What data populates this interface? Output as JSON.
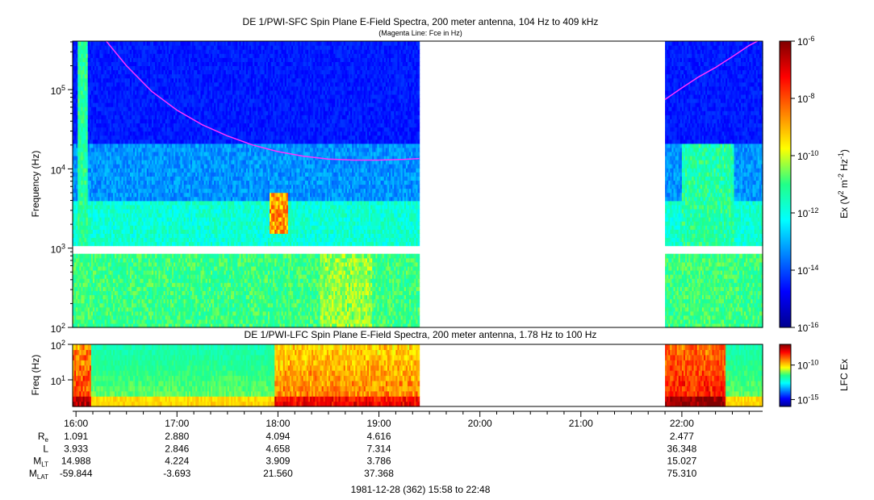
{
  "chart_data": [
    {
      "type": "heatmap",
      "title": "DE 1/PWI-SFC  Spin Plane E-Field Spectra, 200 meter antenna, 104 Hz to 409 kHz",
      "subtitle": "(Magenta Line: Fce in Hz)",
      "ylabel": "Frequency (Hz)",
      "yscale": "log",
      "ylim": [
        100,
        409000
      ],
      "y_ticks": [
        {
          "value": 100,
          "base": "10",
          "exp": "2"
        },
        {
          "value": 1000,
          "base": "10",
          "exp": "3"
        },
        {
          "value": 10000,
          "base": "10",
          "exp": "4"
        },
        {
          "value": 100000,
          "base": "10",
          "exp": "5"
        }
      ],
      "colorbar": {
        "label_parts": [
          "Ex (V",
          "2",
          " m",
          "-2",
          " Hz",
          "-1",
          ")"
        ],
        "scale": "log",
        "range": [
          1e-16,
          1e-06
        ],
        "ticks": [
          {
            "value": 1e-16,
            "base": "10",
            "exp": "-16"
          },
          {
            "value": 1e-14,
            "base": "10",
            "exp": "-14"
          },
          {
            "value": 1e-12,
            "base": "10",
            "exp": "-12"
          },
          {
            "value": 1e-10,
            "base": "10",
            "exp": "-10"
          },
          {
            "value": 1e-08,
            "base": "10",
            "exp": "-8"
          },
          {
            "value": 1e-06,
            "base": "10",
            "exp": "-6"
          }
        ]
      },
      "data_segments_ut": [
        [
          "15:58",
          "19:24"
        ],
        [
          "21:50",
          "22:48"
        ]
      ],
      "series": [
        {
          "name": "Fce",
          "color": "#ff33ff",
          "x": [
            "16:18",
            "16:30",
            "16:45",
            "17:00",
            "17:15",
            "17:30",
            "17:45",
            "18:00",
            "18:15",
            "18:30",
            "18:45",
            "19:00",
            "19:15",
            "19:24",
            "21:50",
            "22:00",
            "22:10",
            "22:20",
            "22:30",
            "22:40",
            "22:45"
          ],
          "y": [
            409000,
            200000,
            95000,
            55000,
            36000,
            26000,
            20000,
            16500,
            14500,
            13300,
            12900,
            12900,
            13200,
            13500,
            75000,
            105000,
            145000,
            190000,
            260000,
            360000,
            409000
          ]
        }
      ]
    },
    {
      "type": "heatmap",
      "title": "DE 1/PWI-LFC  Spin Plane E-Field Spectra, 200 meter antenna, 1.78 Hz to 100 Hz",
      "ylabel": "Freq (Hz)",
      "yscale": "log",
      "ylim": [
        1.78,
        100
      ],
      "y_ticks": [
        {
          "value": 10,
          "base": "10",
          "exp": "1"
        },
        {
          "value": 100,
          "base": "10",
          "exp": "2"
        }
      ],
      "colorbar": {
        "label": "LFC Ex",
        "scale": "log",
        "range": [
          1e-16,
          1e-07
        ],
        "ticks": [
          {
            "value": 1e-15,
            "base": "10",
            "exp": "-15"
          },
          {
            "value": 1e-10,
            "base": "10",
            "exp": "-10"
          }
        ]
      },
      "data_segments_ut": [
        [
          "15:58",
          "19:24"
        ],
        [
          "21:50",
          "22:48"
        ]
      ]
    }
  ],
  "time_axis": {
    "start": "15:58",
    "end": "22:48",
    "ticks": [
      "16:00",
      "17:00",
      "18:00",
      "19:00",
      "20:00",
      "21:00",
      "22:00"
    ]
  },
  "ephemeris": {
    "rows": [
      {
        "label": "R",
        "sub": "e",
        "values": [
          "1.091",
          "2.880",
          "4.094",
          "4.616",
          "",
          "",
          "2.477"
        ]
      },
      {
        "label": "L",
        "sub": "",
        "values": [
          "3.933",
          "2.846",
          "4.658",
          "7.314",
          "",
          "",
          "36.348"
        ]
      },
      {
        "label": "M",
        "sub": "LT",
        "values": [
          "14.988",
          "4.224",
          "3.909",
          "3.786",
          "",
          "",
          "15.027"
        ]
      },
      {
        "label": "M",
        "sub": "LAT",
        "values": [
          "-59.844",
          "-3.693",
          "21.560",
          "37.368",
          "",
          "",
          "75.310"
        ]
      }
    ]
  },
  "footer": "1981-12-28 (362) 15:58 to 22:48"
}
